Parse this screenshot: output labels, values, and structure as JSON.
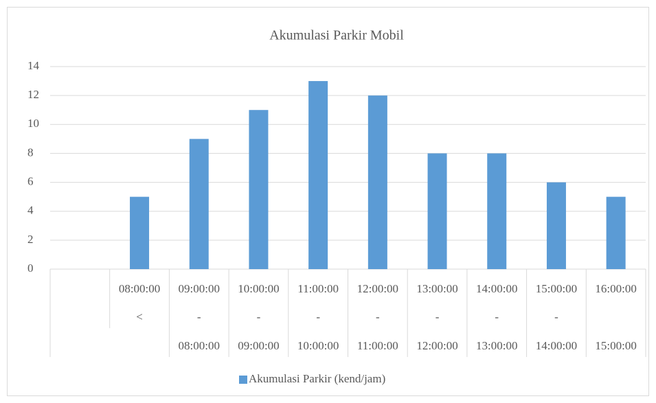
{
  "chart_data": {
    "type": "bar",
    "title": "Akumulasi Parkir Mobil",
    "categories": [
      null,
      [
        "08:00:00",
        "<",
        null
      ],
      [
        "09:00:00",
        "-",
        "08:00:00"
      ],
      [
        "10:00:00",
        "-",
        "09:00:00"
      ],
      [
        "11:00:00",
        "-",
        "10:00:00"
      ],
      [
        "12:00:00",
        "-",
        "11:00:00"
      ],
      [
        "13:00:00",
        "-",
        "12:00:00"
      ],
      [
        "14:00:00",
        "-",
        "13:00:00"
      ],
      [
        "15:00:00",
        "-",
        "14:00:00"
      ],
      [
        "16:00:00",
        null,
        "15:00:00"
      ]
    ],
    "series": [
      {
        "name": "Akumulasi Parkir (kend/jam)",
        "color": "#5b9bd5",
        "values": [
          null,
          5,
          9,
          11,
          13,
          12,
          8,
          8,
          6,
          5
        ]
      }
    ],
    "ylim": [
      0,
      14
    ],
    "yticks": [
      0,
      2,
      4,
      6,
      8,
      10,
      12,
      14
    ],
    "grid": true,
    "legend": "bottom"
  }
}
